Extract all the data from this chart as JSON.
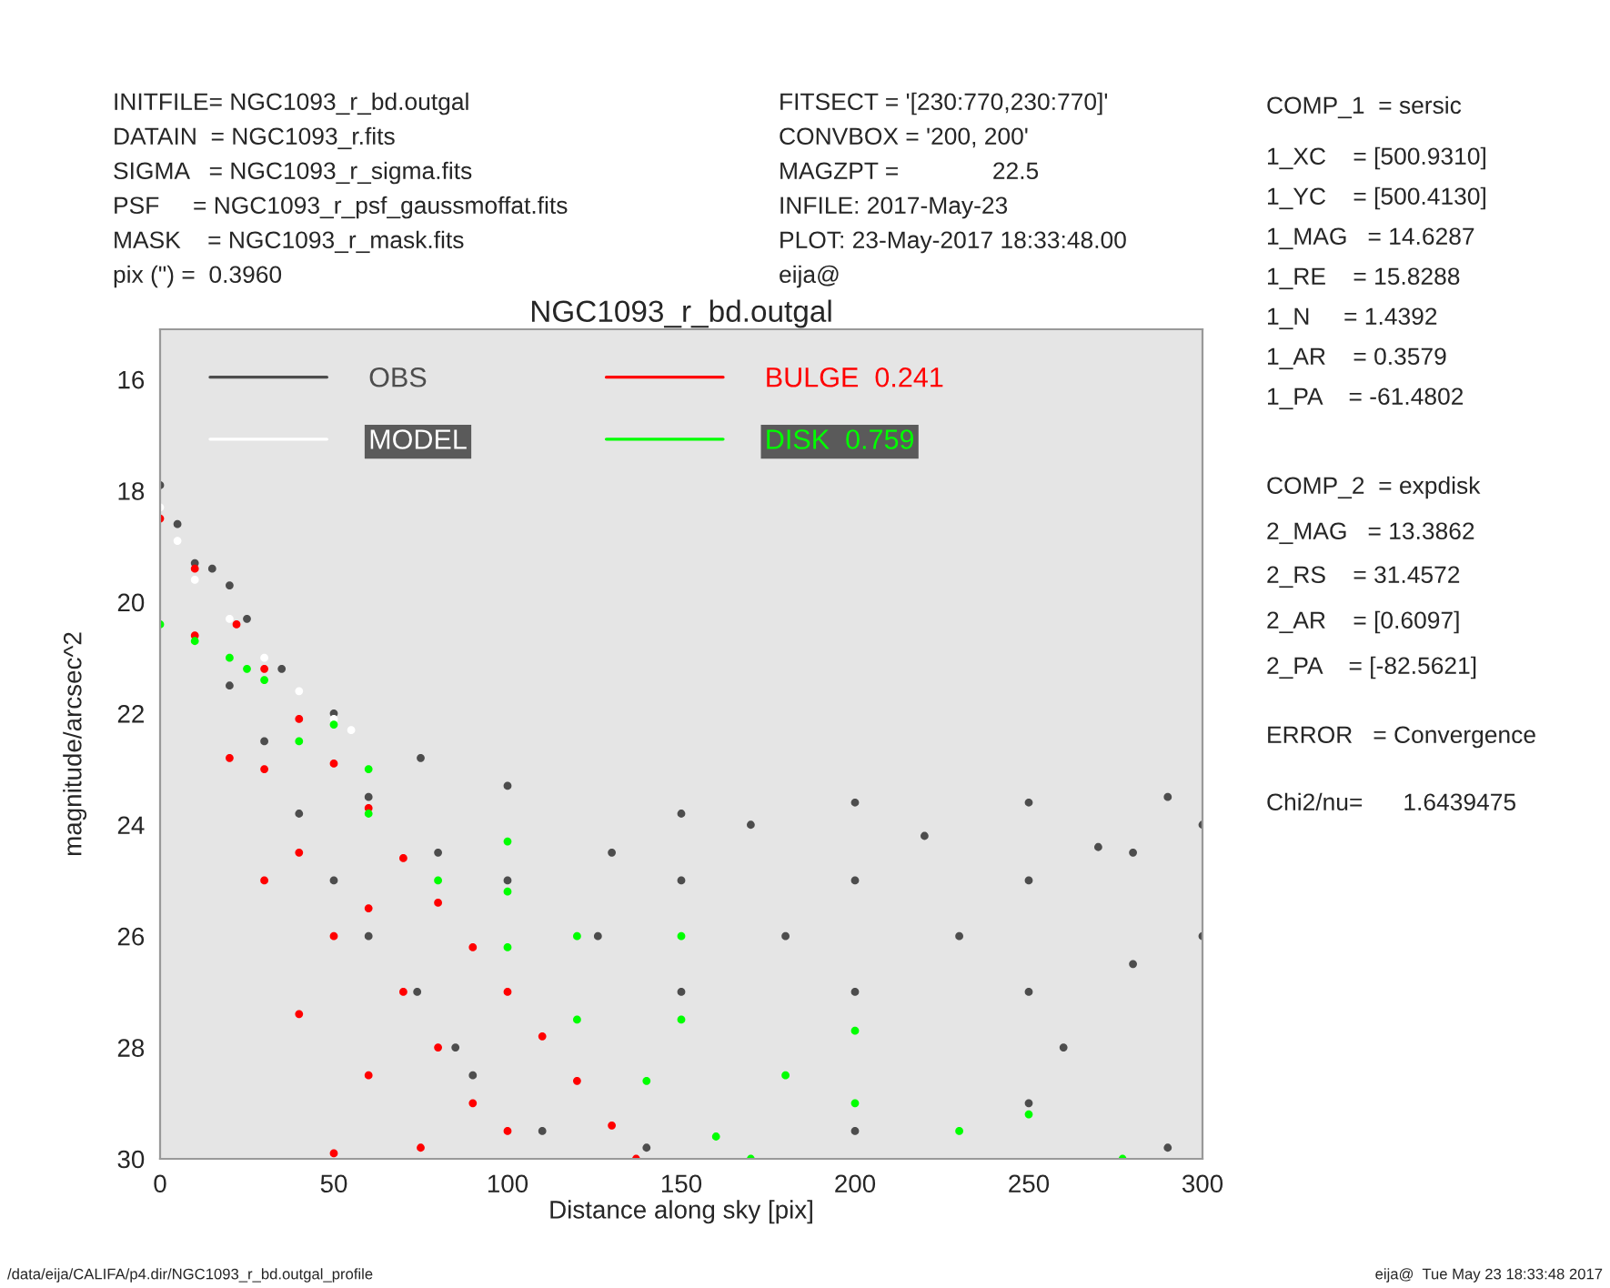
{
  "chart_data": {
    "type": "scatter",
    "title": "NGC1093_r_bd.outgal",
    "xlabel": "Distance along sky [pix]",
    "ylabel": "magnitude/arcsec^2",
    "xlim": [
      0,
      300
    ],
    "xticks": [
      0,
      50,
      100,
      150,
      200,
      250,
      300
    ],
    "ylim": [
      30,
      15.1
    ],
    "yticks": [
      16,
      18,
      20,
      22,
      24,
      26,
      28,
      30
    ],
    "grid": false,
    "legend": "top",
    "marker": "circle",
    "series": [
      {
        "name": "OBS",
        "color": "#4d4d4d",
        "x": [
          0,
          5,
          10,
          15,
          20,
          25,
          35,
          50,
          75,
          100,
          150,
          200,
          250,
          290,
          300,
          20,
          30,
          40,
          50,
          60,
          74,
          85,
          90,
          110,
          140,
          200,
          250,
          290,
          100,
          150,
          200,
          250,
          280,
          150,
          200,
          250,
          280,
          126,
          180,
          230,
          260,
          300,
          60,
          80,
          130,
          170,
          220,
          270
        ],
        "values": [
          17.9,
          18.6,
          19.3,
          19.4,
          19.7,
          20.3,
          21.2,
          22,
          22.8,
          23.3,
          23.8,
          23.6,
          23.6,
          23.5,
          24,
          21.5,
          22.5,
          23.8,
          25,
          26,
          27,
          28,
          28.5,
          29.5,
          29.8,
          29.5,
          29,
          29.8,
          25,
          25,
          25,
          25,
          24.5,
          27,
          27,
          27,
          26.5,
          26,
          26,
          26,
          28,
          26,
          23.5,
          24.5,
          24.5,
          24,
          24.2,
          24.4
        ]
      },
      {
        "name": "MODEL",
        "color": "#ffffff",
        "x": [
          0,
          5,
          10,
          20,
          30,
          40,
          50,
          55
        ],
        "values": [
          18.3,
          18.9,
          19.6,
          20.3,
          21.0,
          21.6,
          22.1,
          22.3
        ]
      },
      {
        "name": "BULGE  0.241",
        "color": "#ff0000",
        "x": [
          0,
          10,
          22,
          30,
          40,
          50,
          60,
          70,
          80,
          90,
          100,
          110,
          120,
          130,
          137,
          10,
          20,
          30,
          40,
          50,
          30,
          40,
          50,
          60,
          70,
          80,
          90,
          100,
          60,
          75
        ],
        "values": [
          18.5,
          19.4,
          20.4,
          21.2,
          22.1,
          22.9,
          23.7,
          24.6,
          25.4,
          26.2,
          27.0,
          27.8,
          28.6,
          29.4,
          30,
          20.6,
          22.8,
          25.0,
          27.4,
          29.9,
          23,
          24.5,
          26,
          25.5,
          27,
          28,
          29,
          29.5,
          28.5,
          29.8
        ]
      },
      {
        "name": "DISK  0.759",
        "color": "#00ff00",
        "x": [
          0,
          10,
          20,
          30,
          50,
          100,
          150,
          200,
          250,
          277,
          25,
          40,
          60,
          80,
          100,
          120,
          140,
          160,
          170,
          60,
          100,
          150,
          200,
          230,
          180,
          120
        ],
        "values": [
          20.4,
          20.7,
          21.0,
          21.4,
          22.2,
          24.3,
          26.0,
          27.7,
          29.2,
          30,
          21.2,
          22.5,
          23.8,
          25.0,
          26.2,
          27.5,
          28.6,
          29.6,
          30,
          23,
          25.2,
          27.5,
          29,
          29.5,
          28.5,
          26
        ]
      }
    ],
    "annotations": [
      "INITFILE= NGC1093_r_bd.outgal",
      "DATAIN  = NGC1093_r.fits",
      "SIGMA   = NGC1093_r_sigma.fits",
      "PSF     = NGC1093_r_psf_gaussmoffat.fits",
      "MASK    = NGC1093_r_mask.fits",
      "pix (\") =  0.3960",
      "FITSECT = '[230:770,230:770]'",
      "CONVBOX = '200, 200'",
      "MAGZPT =              22.5",
      "INFILE: 2017-May-23",
      "PLOT: 23-May-2017 18:33:48.00",
      "eija@",
      "COMP_1  = sersic",
      "1_XC    = [500.9310]",
      "1_YC    = [500.4130]",
      "1_MAG   = 14.6287",
      "1_RE    = 15.8288",
      "1_N     = 1.4392",
      "1_AR    = 0.3579",
      "1_PA    = -61.4802",
      "COMP_2  = expdisk",
      "2_MAG   = 13.3862",
      "2_RS    = 31.4572",
      "2_AR    = [0.6097]",
      "2_PA    = [-82.5621]",
      "ERROR   = Convergence",
      "Chi2/nu=      1.6439475",
      "/data/eija/CALIFA/p4.dir/NGC1093_r_bd.outgal_profile",
      "eija@  Tue May 23 18:33:48 2017"
    ]
  }
}
